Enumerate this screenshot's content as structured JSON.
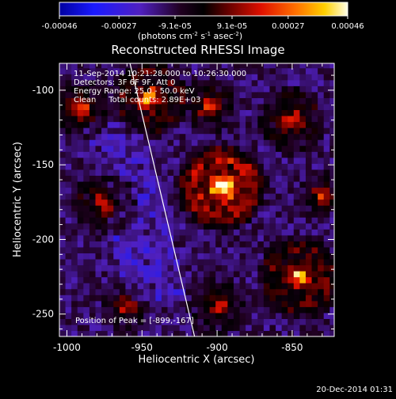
{
  "window": {
    "timestamp": "20-Dec-2014 01:31"
  },
  "colorbar": {
    "ticks": [
      "-0.00046",
      "-0.00027",
      "-9.1e-05",
      "9.1e-05",
      "0.00027",
      "0.00046"
    ],
    "vmin": -0.00046,
    "vmax": 0.00046,
    "units_prefix": "(photons cm",
    "units_sup1": "-2",
    "units_mid": " s",
    "units_sup2": "-1",
    "units_mid2": " asec",
    "units_sup3": "-2",
    "units_suffix": ")"
  },
  "chart_data": {
    "type": "heatmap",
    "title": "Reconstructed RHESSI Image",
    "xlabel": "Heliocentric X (arcsec)",
    "ylabel": "Heliocentric Y (arcsec)",
    "xlim": [
      -1005,
      -822
    ],
    "ylim": [
      -265,
      -82
    ],
    "xticks": [
      -1000,
      -950,
      -900,
      -850
    ],
    "yticks": [
      -100,
      -150,
      -200,
      -250
    ],
    "xtick_labels": [
      "-1000",
      "-950",
      "-900",
      "-850"
    ],
    "ytick_labels": [
      "-100",
      "-150",
      "-200",
      "-250"
    ],
    "annotations": [
      "11-Sep-2014 10:21:28.000 to 10:26:30.000",
      "Detectors: 3F 6F 9F, Att 0",
      "Energy Range: 25.0 - 50.0 keV",
      "Clean     Total counts: 2.89E+03"
    ],
    "peak_label": "Position of Peak = [-899,-167]",
    "peak": [
      -899,
      -167
    ],
    "limb_line": [
      [
        -958,
        -82
      ],
      [
        -915,
        -265
      ]
    ],
    "bright_regions": [
      {
        "x": -897,
        "y": -165,
        "r": 32,
        "level": 1.0
      },
      {
        "x": -845,
        "y": -225,
        "r": 30,
        "level": 0.75
      },
      {
        "x": -990,
        "y": -112,
        "r": 22,
        "level": 0.6
      },
      {
        "x": -975,
        "y": -175,
        "r": 25,
        "level": 0.55
      },
      {
        "x": -945,
        "y": -105,
        "r": 28,
        "level": 0.7
      },
      {
        "x": -850,
        "y": -120,
        "r": 25,
        "level": 0.6
      },
      {
        "x": -905,
        "y": -110,
        "r": 22,
        "level": 0.55
      },
      {
        "x": -830,
        "y": -170,
        "r": 18,
        "level": 0.5
      },
      {
        "x": -960,
        "y": -245,
        "r": 20,
        "level": 0.45
      },
      {
        "x": -900,
        "y": -245,
        "r": 22,
        "level": 0.5
      }
    ],
    "grid": false
  }
}
